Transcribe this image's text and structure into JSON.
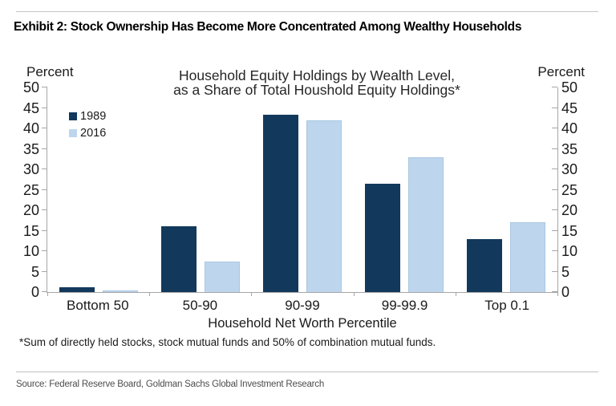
{
  "exhibit_title": "Exhibit 2: Stock Ownership Has Become More Concentrated Among Wealthy Households",
  "y_axis_left_label": "Percent",
  "y_axis_right_label": "Percent",
  "chart_data": {
    "type": "bar",
    "title_line1": "Household Equity Holdings by Wealth Level,",
    "title_line2": "as a Share of Total Houshold Equity Holdings*",
    "categories": [
      "Bottom 50",
      "50-90",
      "90-99",
      "99-99.9",
      "Top 0.1"
    ],
    "series": [
      {
        "name": "1989",
        "color": "#12395c",
        "values": [
          1.2,
          16,
          43.3,
          26.5,
          13
        ]
      },
      {
        "name": "2016",
        "color": "#bdd6ee",
        "values": [
          0.3,
          7.5,
          42,
          33,
          17
        ]
      }
    ],
    "xlabel": "Household Net Worth Percentile",
    "ylabel": "Percent",
    "ylim": [
      0,
      50
    ],
    "ytick_step": 5,
    "grid": false,
    "legend_position": "top-left",
    "axis_color": "#a6a6a6"
  },
  "footnote": "*Sum of directly held stocks, stock mutual funds and 50% of combination mutual funds.",
  "source": "Source: Federal Reserve Board, Goldman Sachs Global Investment Research"
}
